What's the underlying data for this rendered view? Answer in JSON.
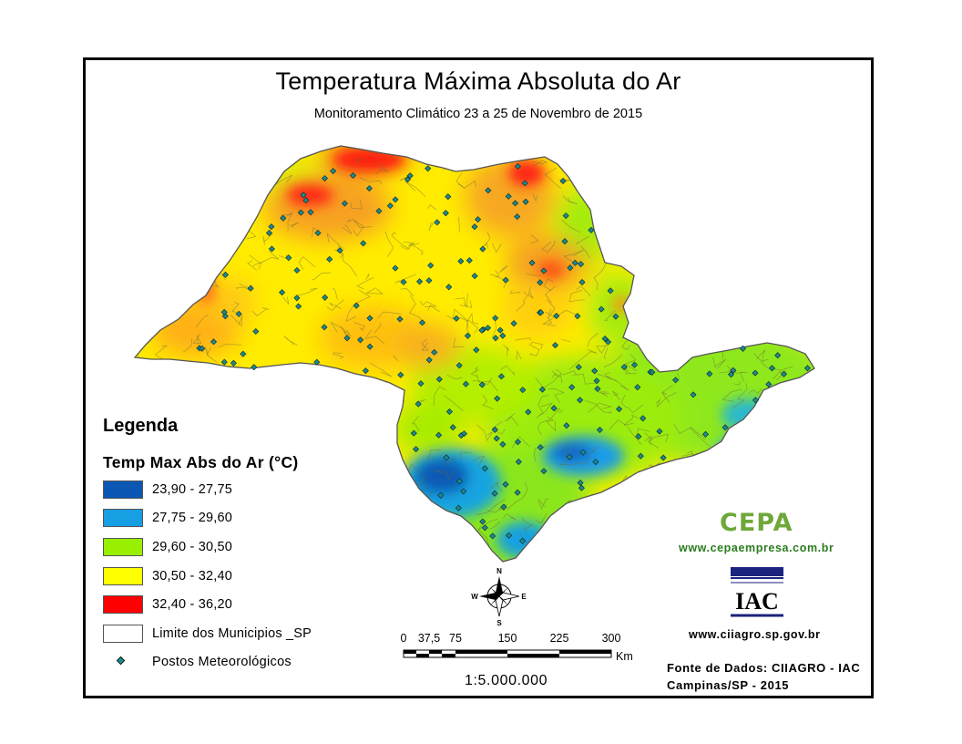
{
  "title": "Temperatura Máxima Absoluta do Ar",
  "subtitle": "Monitoramento Climático 23 a 25 de Novembro de 2015",
  "legend": {
    "heading": "Legenda",
    "subheading": "Temp Max Abs do Ar (°C)",
    "classes": [
      {
        "label": "23,90 - 27,75",
        "color": "#0b57b3"
      },
      {
        "label": "27,75 - 29,60",
        "color": "#169fe3"
      },
      {
        "label": "29,60 - 30,50",
        "color": "#98f000"
      },
      {
        "label": "30,50 - 32,40",
        "color": "#ffff00"
      },
      {
        "label": "32,40 - 36,20",
        "color": "#ff0000"
      }
    ],
    "boundary_label": "Limite dos Municipios _SP",
    "stations_label": "Postos Meteorológicos",
    "station_color": "#1a8a8a"
  },
  "compass": {
    "n": "N",
    "s": "S",
    "e": "E",
    "w": "W"
  },
  "scale_bar": {
    "ticks": [
      "0",
      "37,5",
      "75",
      "150",
      "225",
      "300"
    ],
    "unit": "Km",
    "ratio": "1:5.000.000"
  },
  "logos": {
    "cepa": "CEPA",
    "cepa_url": "www.cepaempresa.com.br",
    "iac": "IAC",
    "ciiagro_url": "www.ciiagro.sp.gov.br"
  },
  "source": {
    "line1": "Fonte de Dados: CIIAGRO - IAC",
    "line2": "Campinas/SP - 2015"
  }
}
